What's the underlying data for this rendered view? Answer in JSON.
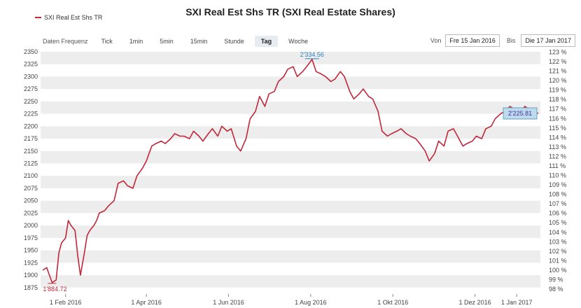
{
  "toolbar": {
    "frequency_label": "Daten Frequenz",
    "buttons": [
      "Tick",
      "1min",
      "5min",
      "15min",
      "Stunde",
      "Tag",
      "Woche"
    ],
    "active": "Tag"
  },
  "range": {
    "from_label": "Von",
    "from_value": "Fre 15 Jan 2016",
    "to_label": "Bis",
    "to_value": "Die 17 Jan 2017"
  },
  "colors": {
    "line": "#c0273a",
    "band": "#ededed",
    "max_label": "#2a7fbf",
    "last_box": "#bcdcee"
  },
  "chart_data": {
    "type": "line",
    "title": "SXI Real Est Shs TR (SXI Real Estate Shares)",
    "series": [
      {
        "name": "SXI Real Est Shs TR",
        "x": [
          "2016-01-15",
          "2016-01-18",
          "2016-01-20",
          "2016-01-22",
          "2016-01-25",
          "2016-01-27",
          "2016-01-29",
          "2016-02-01",
          "2016-02-03",
          "2016-02-05",
          "2016-02-08",
          "2016-02-10",
          "2016-02-12",
          "2016-02-15",
          "2016-02-17",
          "2016-02-19",
          "2016-02-22",
          "2016-02-24",
          "2016-02-26",
          "2016-03-01",
          "2016-03-04",
          "2016-03-08",
          "2016-03-11",
          "2016-03-15",
          "2016-03-18",
          "2016-03-22",
          "2016-03-25",
          "2016-03-29",
          "2016-04-01",
          "2016-04-05",
          "2016-04-08",
          "2016-04-12",
          "2016-04-15",
          "2016-04-19",
          "2016-04-22",
          "2016-04-26",
          "2016-04-29",
          "2016-05-03",
          "2016-05-06",
          "2016-05-10",
          "2016-05-13",
          "2016-05-17",
          "2016-05-20",
          "2016-05-24",
          "2016-05-27",
          "2016-05-31",
          "2016-06-03",
          "2016-06-07",
          "2016-06-10",
          "2016-06-14",
          "2016-06-17",
          "2016-06-21",
          "2016-06-24",
          "2016-06-28",
          "2016-07-01",
          "2016-07-05",
          "2016-07-08",
          "2016-07-12",
          "2016-07-15",
          "2016-07-19",
          "2016-07-22",
          "2016-07-26",
          "2016-07-29",
          "2016-08-02",
          "2016-08-05",
          "2016-08-09",
          "2016-08-12",
          "2016-08-16",
          "2016-08-19",
          "2016-08-23",
          "2016-08-26",
          "2016-08-30",
          "2016-09-02",
          "2016-09-06",
          "2016-09-09",
          "2016-09-13",
          "2016-09-16",
          "2016-09-20",
          "2016-09-23",
          "2016-09-27",
          "2016-09-30",
          "2016-10-04",
          "2016-10-07",
          "2016-10-11",
          "2016-10-14",
          "2016-10-18",
          "2016-10-21",
          "2016-10-25",
          "2016-10-28",
          "2016-11-01",
          "2016-11-04",
          "2016-11-08",
          "2016-11-11",
          "2016-11-15",
          "2016-11-18",
          "2016-11-22",
          "2016-11-25",
          "2016-11-29",
          "2016-12-02",
          "2016-12-06",
          "2016-12-09",
          "2016-12-13",
          "2016-12-16",
          "2016-12-20",
          "2016-12-23",
          "2016-12-27",
          "2016-12-30",
          "2017-01-04",
          "2017-01-07",
          "2017-01-10",
          "2017-01-13",
          "2017-01-17"
        ],
        "values": [
          1910,
          1915,
          1900,
          1885,
          1890,
          1945,
          1965,
          1975,
          2010,
          2000,
          1990,
          1940,
          1900,
          1945,
          1980,
          1990,
          2000,
          2010,
          2025,
          2030,
          2040,
          2050,
          2085,
          2090,
          2080,
          2075,
          2100,
          2115,
          2130,
          2160,
          2165,
          2170,
          2165,
          2175,
          2185,
          2180,
          2180,
          2175,
          2190,
          2180,
          2170,
          2185,
          2195,
          2180,
          2200,
          2190,
          2195,
          2160,
          2150,
          2175,
          2215,
          2230,
          2260,
          2240,
          2265,
          2270,
          2290,
          2300,
          2315,
          2320,
          2300,
          2310,
          2320,
          2334.56,
          2310,
          2305,
          2300,
          2290,
          2295,
          2310,
          2300,
          2270,
          2255,
          2265,
          2275,
          2260,
          2255,
          2230,
          2190,
          2180,
          2185,
          2190,
          2195,
          2185,
          2180,
          2175,
          2165,
          2150,
          2130,
          2145,
          2170,
          2160,
          2190,
          2195,
          2180,
          2160,
          2165,
          2170,
          2180,
          2175,
          2195,
          2200,
          2215,
          2225,
          2230,
          2240,
          2235,
          2230,
          2240,
          2235,
          2230,
          2225.81
        ]
      }
    ],
    "x_ticks": [
      "1 Feb 2016",
      "1 Apr 2016",
      "1 Jun 2016",
      "1 Aug 2016",
      "1 Okt 2016",
      "1 Dez 2016",
      "1 Jan 2017"
    ],
    "x_tick_dates": [
      "2016-02-01",
      "2016-04-01",
      "2016-06-01",
      "2016-08-01",
      "2016-10-01",
      "2016-12-01",
      "2017-01-01"
    ],
    "y_left_ticks": [
      1875,
      1900,
      1925,
      1950,
      1975,
      2000,
      2025,
      2050,
      2075,
      2100,
      2125,
      2150,
      2175,
      2200,
      2225,
      2250,
      2275,
      2300,
      2325,
      2350
    ],
    "y_left_labels": [
      "1875",
      "1900",
      "1925",
      "1950",
      "1975",
      "2000",
      "2025",
      "2050",
      "2075",
      "2100",
      "2125",
      "2150",
      "2175",
      "2200",
      "2225",
      "2250",
      "2275",
      "2300",
      "2325",
      "2350"
    ],
    "y_right_labels": [
      "98 %",
      "99 %",
      "100 %",
      "101 %",
      "102 %",
      "103 %",
      "104 %",
      "105 %",
      "106 %",
      "107 %",
      "108 %",
      "109 %",
      "110 %",
      "111 %",
      "112 %",
      "113 %",
      "114 %",
      "115 %",
      "116 %",
      "117 %",
      "118 %",
      "119 %",
      "120 %",
      "121 %",
      "122 %",
      "123 %"
    ],
    "y_right_base": 1910,
    "ylim": [
      1862,
      2357
    ],
    "annotations": {
      "min": {
        "label": "1'884.72",
        "value": 1884.72,
        "date": "2016-01-22"
      },
      "max": {
        "label": "2'334.56",
        "value": 2334.56,
        "date": "2016-08-02"
      },
      "last": {
        "label": "2'225.81",
        "value": 2225.81,
        "date": "2017-01-17"
      }
    },
    "grid": "horizontal bands"
  }
}
